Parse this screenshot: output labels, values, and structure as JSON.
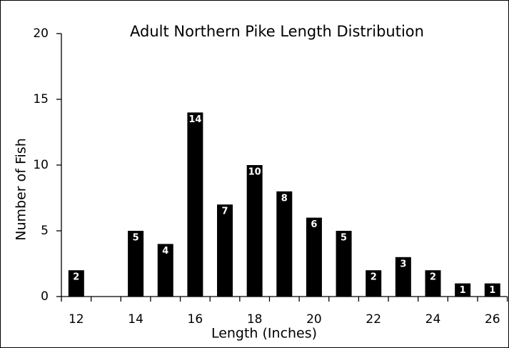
{
  "chart_data": {
    "type": "bar",
    "title": "Adult Northern Pike Length Distribution",
    "x_label": "Length (Inches)",
    "y_label": "Number of Fish",
    "categories": [
      "12",
      null,
      "14",
      null,
      "16",
      null,
      "18",
      null,
      "20",
      null,
      "22",
      null,
      "24",
      null,
      "26"
    ],
    "values": [
      2,
      0,
      5,
      4,
      14,
      7,
      10,
      8,
      6,
      5,
      2,
      3,
      2,
      1,
      1
    ],
    "color": "#000000",
    "ylim": [
      0,
      20
    ],
    "yticks": [
      0,
      5,
      10,
      15,
      20
    ],
    "grid": false
  }
}
